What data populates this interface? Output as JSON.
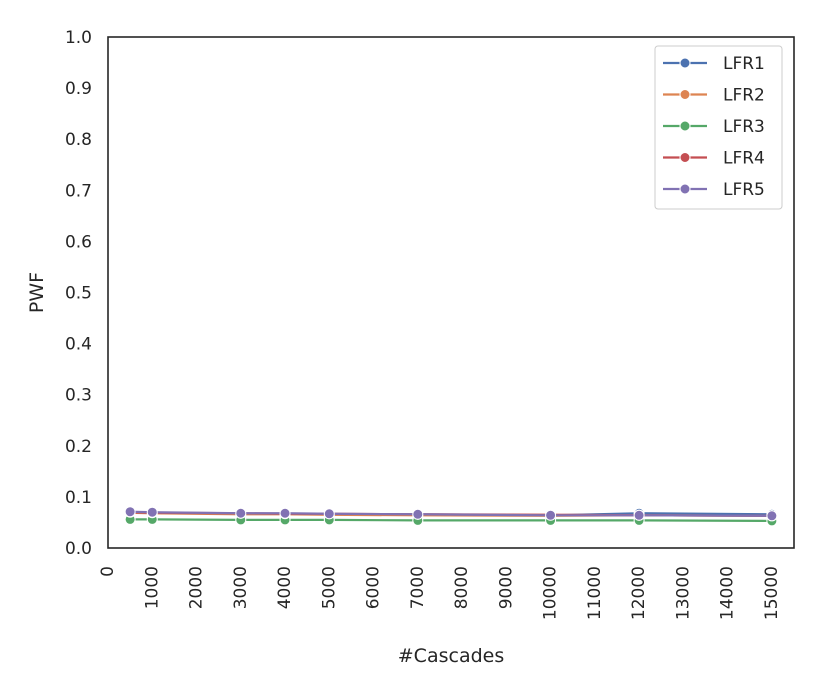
{
  "chart_data": {
    "type": "line",
    "title": "",
    "xlabel": "#Cascades",
    "ylabel": "PWF",
    "xlim": [
      0,
      15500
    ],
    "ylim": [
      0.0,
      1.0
    ],
    "x_ticks": [
      0,
      1000,
      2000,
      3000,
      4000,
      5000,
      6000,
      7000,
      8000,
      9000,
      10000,
      11000,
      12000,
      13000,
      14000,
      15000
    ],
    "x_tick_labels": [
      "0",
      "1000",
      "2000",
      "3000",
      "4000",
      "5000",
      "6000",
      "7000",
      "8000",
      "9000",
      "10000",
      "11000",
      "12000",
      "13000",
      "14000",
      "15000"
    ],
    "y_ticks": [
      0.0,
      0.1,
      0.2,
      0.3,
      0.4,
      0.5,
      0.6,
      0.7,
      0.8,
      0.9,
      1.0
    ],
    "y_tick_labels": [
      "0.0",
      "0.1",
      "0.2",
      "0.3",
      "0.4",
      "0.5",
      "0.6",
      "0.7",
      "0.8",
      "0.9",
      "1.0"
    ],
    "grid": false,
    "legend_position": "top-right",
    "x": [
      500,
      1000,
      3000,
      4000,
      5000,
      7000,
      10000,
      12000,
      15000
    ],
    "series": [
      {
        "name": "LFR1",
        "color": "#4c72b0",
        "values": [
          0.07,
          0.069,
          0.067,
          0.067,
          0.066,
          0.065,
          0.064,
          0.068,
          0.066
        ]
      },
      {
        "name": "LFR2",
        "color": "#dd8452",
        "values": [
          0.069,
          0.068,
          0.066,
          0.066,
          0.065,
          0.064,
          0.063,
          0.064,
          0.063
        ]
      },
      {
        "name": "LFR3",
        "color": "#55a868",
        "values": [
          0.056,
          0.056,
          0.055,
          0.055,
          0.055,
          0.054,
          0.054,
          0.054,
          0.053
        ]
      },
      {
        "name": "LFR4",
        "color": "#c44e52",
        "values": [
          0.07,
          0.069,
          0.068,
          0.067,
          0.067,
          0.066,
          0.065,
          0.064,
          0.063
        ]
      },
      {
        "name": "LFR5",
        "color": "#8172b3",
        "values": [
          0.071,
          0.07,
          0.068,
          0.068,
          0.067,
          0.066,
          0.064,
          0.064,
          0.063
        ]
      }
    ]
  }
}
